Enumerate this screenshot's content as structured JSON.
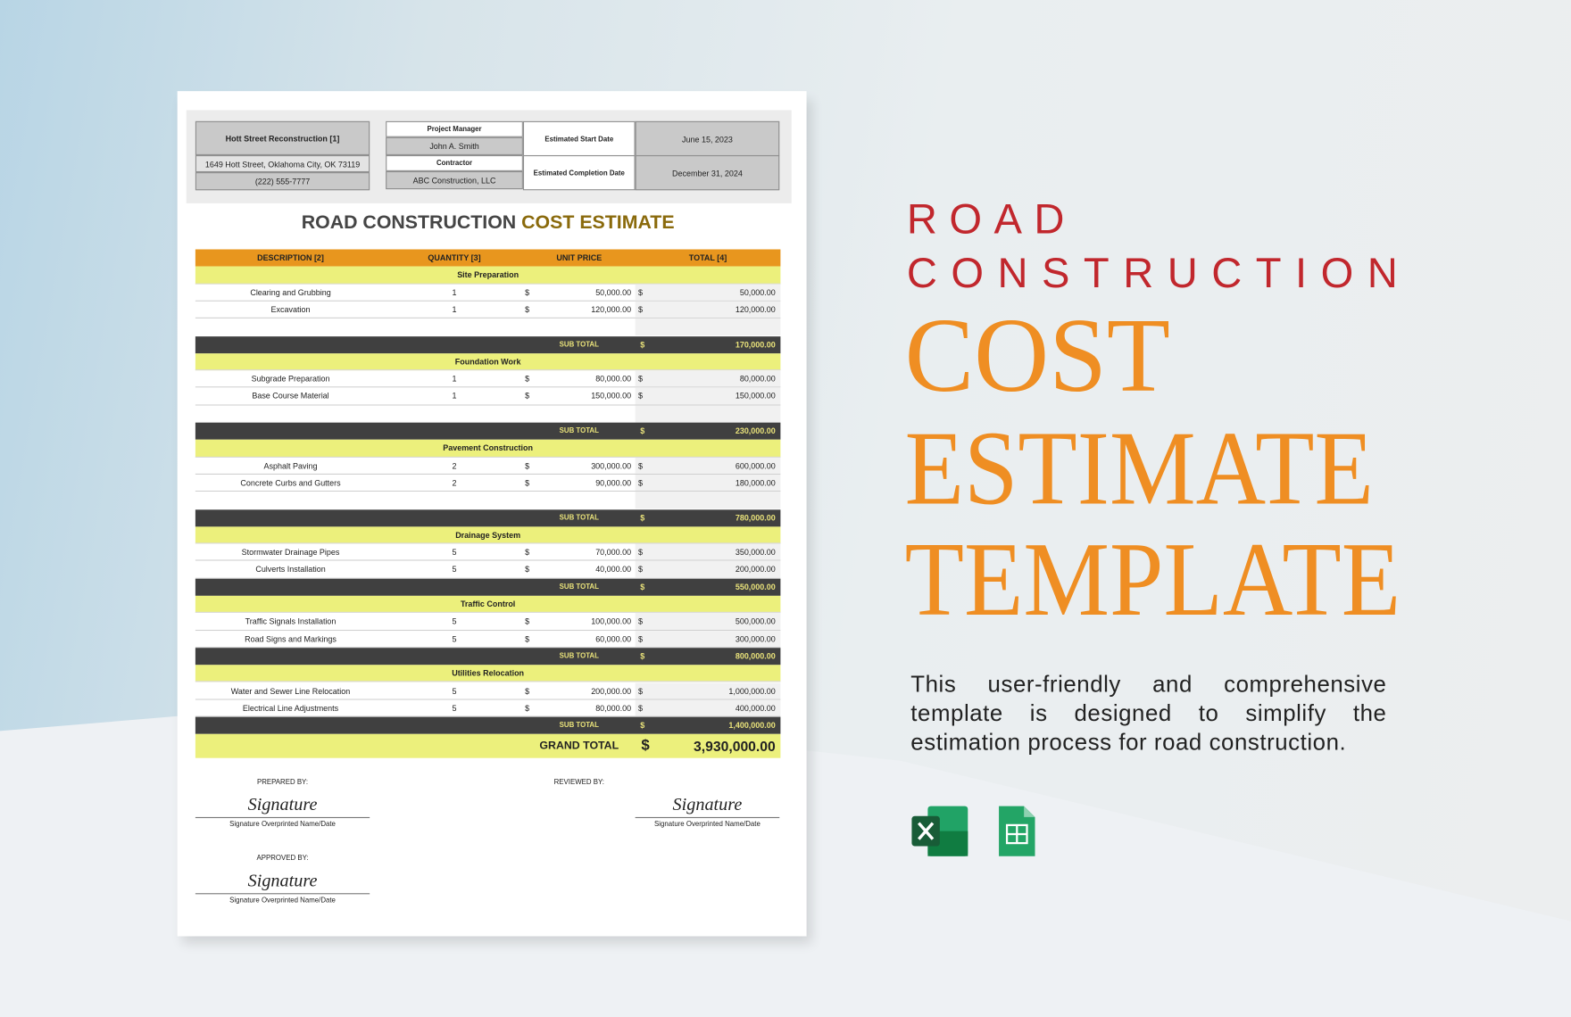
{
  "header": {
    "project": {
      "name": "Hott Street Reconstruction [1]",
      "address": "1649 Hott Street, Oklahoma City, OK 73119",
      "phone": "(222) 555-7777"
    },
    "project_manager": {
      "label": "Project Manager",
      "value": "John A. Smith"
    },
    "contractor": {
      "label": "Contractor",
      "value": "ABC Construction, LLC"
    },
    "start_date": {
      "label": "Estimated Start Date",
      "value": "June 15, 2023"
    },
    "completion_date": {
      "label": "Estimated Completion Date",
      "value": "December 31, 2024"
    }
  },
  "title": {
    "main": "ROAD CONSTRUCTION",
    "accent": "COST ESTIMATE"
  },
  "table": {
    "columns": [
      "DESCRIPTION [2]",
      "QUANTITY [3]",
      "UNIT PRICE",
      "TOTAL [4]"
    ],
    "currency": "$",
    "subtotal_label": "SUB TOTAL",
    "sections": [
      {
        "name": "Site Preparation",
        "items": [
          {
            "description": "Clearing and Grubbing",
            "quantity": 1,
            "unit_price": "50,000.00",
            "total": "50,000.00"
          },
          {
            "description": "Excavation",
            "quantity": 1,
            "unit_price": "120,000.00",
            "total": "120,000.00"
          }
        ],
        "subtotal": "170,000.00"
      },
      {
        "name": "Foundation Work",
        "items": [
          {
            "description": "Subgrade Preparation",
            "quantity": 1,
            "unit_price": "80,000.00",
            "total": "80,000.00"
          },
          {
            "description": "Base Course Material",
            "quantity": 1,
            "unit_price": "150,000.00",
            "total": "150,000.00"
          }
        ],
        "subtotal": "230,000.00"
      },
      {
        "name": "Pavement Construction",
        "items": [
          {
            "description": "Asphalt Paving",
            "quantity": 2,
            "unit_price": "300,000.00",
            "total": "600,000.00"
          },
          {
            "description": "Concrete Curbs and Gutters",
            "quantity": 2,
            "unit_price": "90,000.00",
            "total": "180,000.00"
          }
        ],
        "subtotal": "780,000.00"
      },
      {
        "name": "Drainage System",
        "items": [
          {
            "description": "Stormwater Drainage Pipes",
            "quantity": 5,
            "unit_price": "70,000.00",
            "total": "350,000.00"
          },
          {
            "description": "Culverts Installation",
            "quantity": 5,
            "unit_price": "40,000.00",
            "total": "200,000.00"
          }
        ],
        "subtotal": "550,000.00"
      },
      {
        "name": "Traffic Control",
        "items": [
          {
            "description": "Traffic Signals Installation",
            "quantity": 5,
            "unit_price": "100,000.00",
            "total": "500,000.00"
          },
          {
            "description": "Road Signs and Markings",
            "quantity": 5,
            "unit_price": "60,000.00",
            "total": "300,000.00"
          }
        ],
        "subtotal": "800,000.00"
      },
      {
        "name": "Utilities Relocation",
        "items": [
          {
            "description": "Water and Sewer Line Relocation",
            "quantity": 5,
            "unit_price": "200,000.00",
            "total": "1,000,000.00"
          },
          {
            "description": "Electrical Line Adjustments",
            "quantity": 5,
            "unit_price": "80,000.00",
            "total": "400,000.00"
          }
        ],
        "subtotal": "1,400,000.00"
      }
    ],
    "grand_total": {
      "label": "GRAND TOTAL",
      "value": "3,930,000.00"
    }
  },
  "signatures": [
    {
      "label": "PREPARED BY:",
      "signature": "Signature",
      "caption": "Signature Overprinted Name/Date"
    },
    {
      "label": "REVIEWED BY:",
      "signature": "Signature",
      "caption": "Signature Overprinted Name/Date"
    },
    {
      "label": "APPROVED BY:",
      "signature": "Signature",
      "caption": "Signature Overprinted Name/Date"
    }
  ],
  "promo": {
    "title": [
      "ROAD",
      "CONSTRUCTION",
      "COST",
      "ESTIMATE",
      "TEMPLATE"
    ],
    "description": "This user-friendly and comprehensive template is designed to simplify the estimation process for road construction."
  }
}
